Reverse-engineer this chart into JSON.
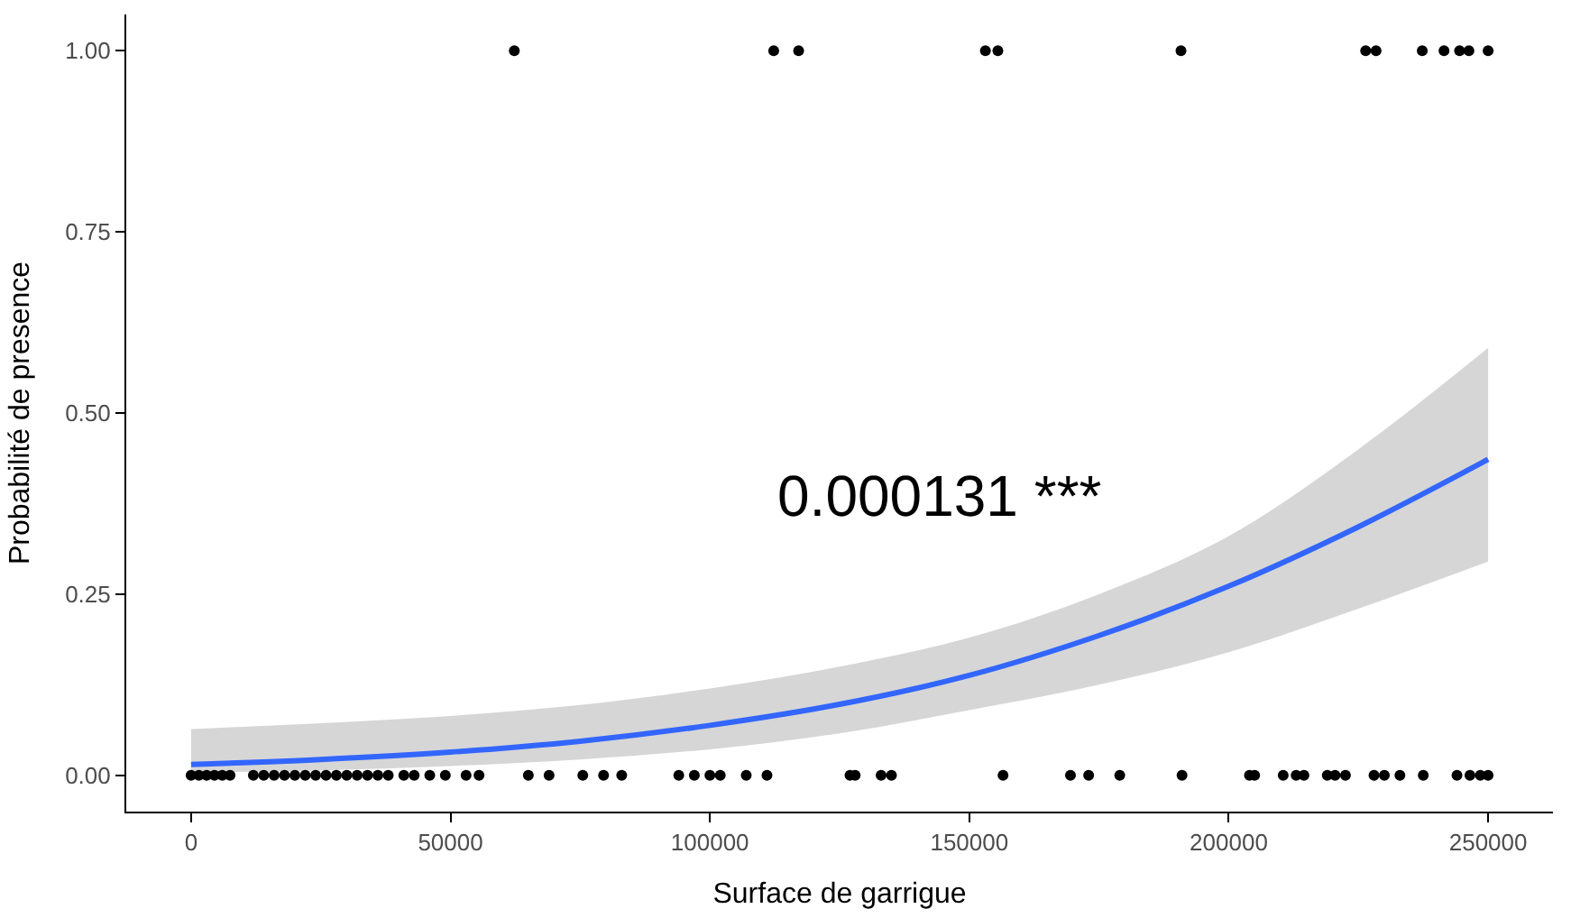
{
  "chart_data": {
    "type": "scatter",
    "xlabel": "Surface de garrigue",
    "ylabel": "Probabilité de presence",
    "xlim": [
      -12500,
      262500
    ],
    "ylim": [
      -0.05,
      1.05
    ],
    "xticks": [
      0,
      50000,
      100000,
      150000,
      200000,
      250000
    ],
    "yticks": [
      {
        "value": 0,
        "label": "0.00"
      },
      {
        "value": 0.25,
        "label": "0.25"
      },
      {
        "value": 0.5,
        "label": "0.50"
      },
      {
        "value": 0.75,
        "label": "0.75"
      },
      {
        "value": 1,
        "label": "1.00"
      }
    ],
    "annotations": [
      "0.000131 ***"
    ],
    "series": [
      {
        "type": "line",
        "marker": "none",
        "color": "#3366ff",
        "x": [
          0,
          25000,
          50000,
          75000,
          100000,
          125000,
          150000,
          175000,
          200000,
          225000,
          250000
        ],
        "values": [
          0.015,
          0.022,
          0.032,
          0.047,
          0.069,
          0.098,
          0.138,
          0.193,
          0.261,
          0.343,
          0.436
        ],
        "lower": [
          0.004,
          0.007,
          0.013,
          0.022,
          0.036,
          0.058,
          0.09,
          0.125,
          0.17,
          0.23,
          0.295
        ],
        "upper": [
          0.064,
          0.072,
          0.082,
          0.097,
          0.12,
          0.15,
          0.19,
          0.25,
          0.33,
          0.45,
          0.59
        ]
      },
      {
        "marker": "circle",
        "color": "#000000",
        "x": [
          62300,
          112300,
          117100,
          153100,
          155500,
          190800,
          226400,
          228400,
          237300,
          241500,
          244500,
          246300,
          250000
        ],
        "values": [
          1,
          1,
          1,
          1,
          1,
          1,
          1,
          1,
          1,
          1,
          1,
          1,
          1
        ]
      },
      {
        "marker": "circle",
        "color": "#000000",
        "x": [
          0,
          1500,
          3000,
          4500,
          6000,
          7500,
          12000,
          14000,
          16000,
          18000,
          20000,
          22000,
          24000,
          26000,
          28000,
          30000,
          32000,
          34000,
          36000,
          38000,
          41000,
          43000,
          46000,
          49000,
          53000,
          55500,
          65000,
          69000,
          75500,
          79500,
          83000,
          94000,
          97000,
          100000,
          102000,
          107000,
          111000,
          127000,
          128000,
          133000,
          135000,
          156500,
          169500,
          173000,
          179000,
          191000,
          204000,
          205000,
          210500,
          213000,
          214500,
          219000,
          220500,
          222500,
          228000,
          230000,
          233000,
          237500,
          244000,
          246500,
          248500,
          250000
        ],
        "values": [
          0,
          0,
          0,
          0,
          0,
          0,
          0,
          0,
          0,
          0,
          0,
          0,
          0,
          0,
          0,
          0,
          0,
          0,
          0,
          0,
          0,
          0,
          0,
          0,
          0,
          0,
          0,
          0,
          0,
          0,
          0,
          0,
          0,
          0,
          0,
          0,
          0,
          0,
          0,
          0,
          0,
          0,
          0,
          0,
          0,
          0,
          0,
          0,
          0,
          0,
          0,
          0,
          0,
          0,
          0,
          0,
          0,
          0,
          0,
          0,
          0,
          0
        ]
      }
    ]
  }
}
